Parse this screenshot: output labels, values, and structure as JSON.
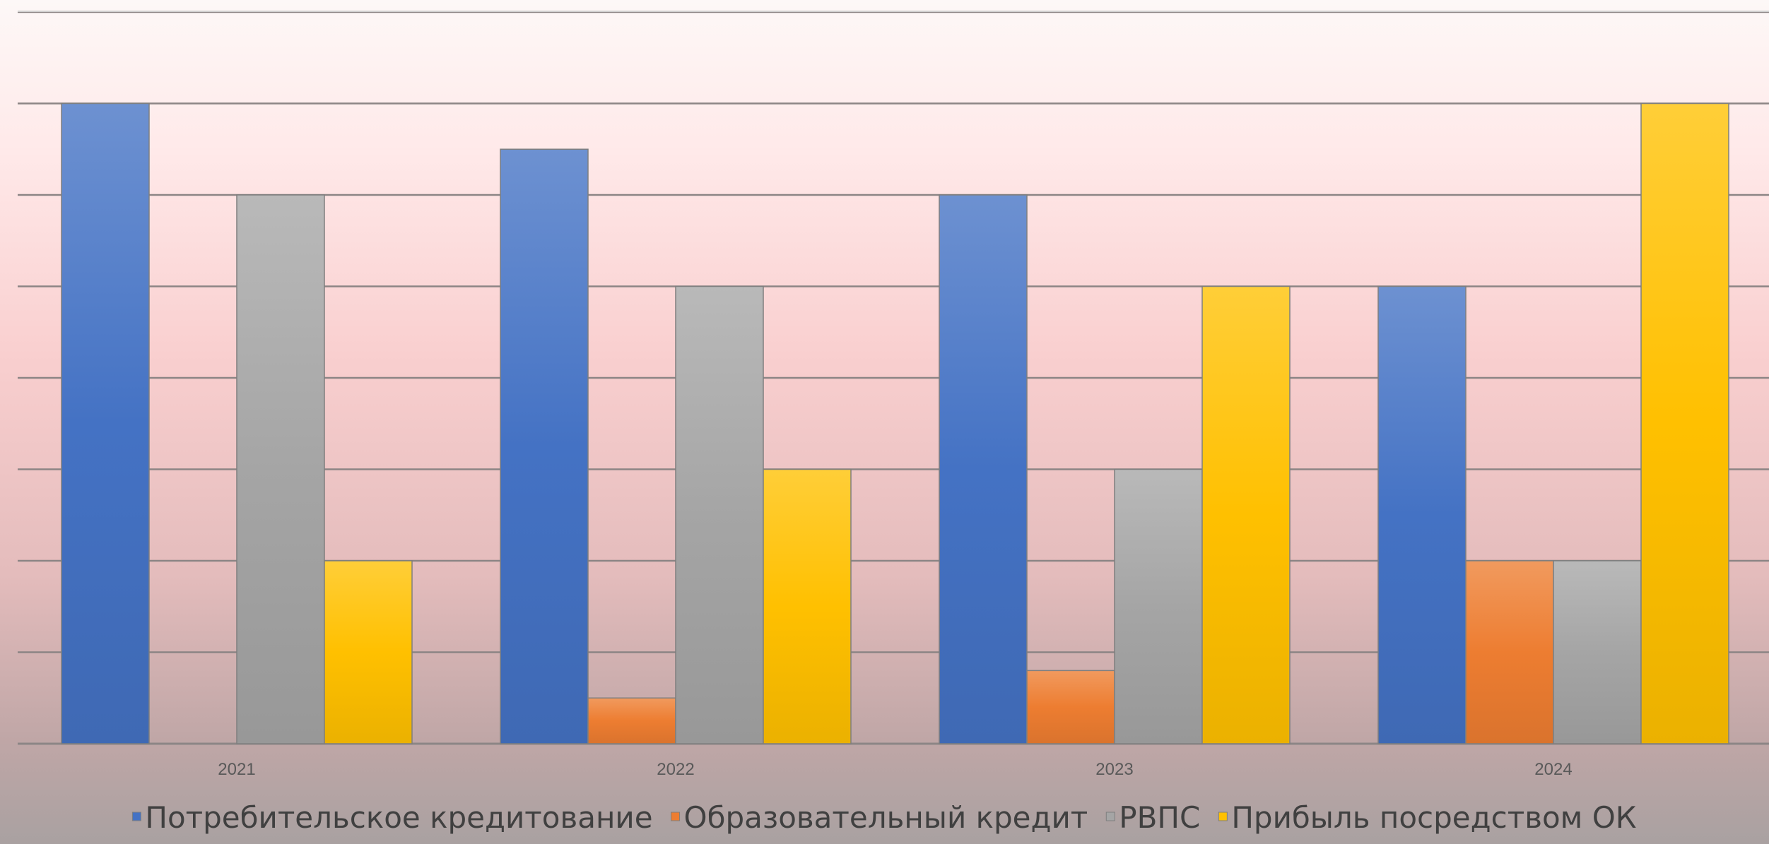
{
  "chart_data": {
    "type": "bar",
    "categories": [
      "2021",
      "2022",
      "2023",
      "2024"
    ],
    "series": [
      {
        "name": "Потребительское кредитование",
        "values": [
          7.0,
          6.5,
          6.0,
          5.0
        ],
        "color": "#4472C4"
      },
      {
        "name": "Образовательный кредит",
        "values": [
          0.0,
          0.5,
          0.8,
          2.0
        ],
        "color": "#ED7D31"
      },
      {
        "name": "РВПС",
        "values": [
          6.0,
          5.0,
          3.0,
          2.0
        ],
        "color": "#A5A5A5"
      },
      {
        "name": "Прибыль посредством ОК",
        "values": [
          2.0,
          3.0,
          5.0,
          7.0
        ],
        "color": "#FFC000"
      }
    ],
    "ylim": [
      0,
      8
    ],
    "grid": true,
    "legend_position": "bottom"
  }
}
